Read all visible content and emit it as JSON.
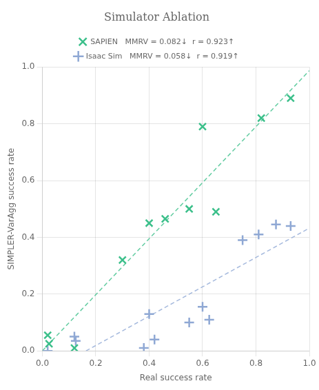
{
  "chart_data": {
    "type": "scatter",
    "title": "Simulator Ablation",
    "xlabel": "Real success rate",
    "ylabel": "SIMPLER-VarAgg success rate",
    "xlim": [
      0.0,
      1.0
    ],
    "ylim": [
      0.0,
      1.0
    ],
    "xticks": [
      {
        "value": 0.0,
        "label": "0.0"
      },
      0.2,
      0.4,
      0.6,
      0.8,
      {
        "value": 1.0,
        "label": "1.0"
      }
    ],
    "yticks": [
      {
        "value": 0.0,
        "label": "0.0"
      },
      0.2,
      0.4,
      0.6,
      0.8,
      {
        "value": 1.0,
        "label": "1.0"
      }
    ],
    "grid": true,
    "legend": "top",
    "series": [
      {
        "name": "SAPIEN",
        "annotation": "MMRV = 0.082↓  r = 0.923↑",
        "color": "#3bbf8a",
        "marker": "x",
        "x": [
          0.02,
          0.025,
          0.12,
          0.3,
          0.4,
          0.46,
          0.55,
          0.6,
          0.65,
          0.82,
          0.93
        ],
        "values": [
          0.055,
          0.025,
          0.01,
          0.32,
          0.45,
          0.465,
          0.5,
          0.79,
          0.49,
          0.82,
          0.89
        ],
        "fit": {
          "type": "line",
          "line_style": "dashed",
          "x": [
            0.0,
            1.0
          ],
          "values": [
            0.0004,
            0.9872
          ]
        }
      },
      {
        "name": "Isaac Sim",
        "annotation": "MMRV = 0.058↓  r = 0.919↑",
        "color": "#8fa8d4",
        "marker": "plus",
        "x": [
          0.02,
          0.12,
          0.125,
          0.38,
          0.4,
          0.42,
          0.55,
          0.6,
          0.625,
          0.75,
          0.81,
          0.875,
          0.93
        ],
        "values": [
          0.0,
          0.05,
          0.035,
          0.01,
          0.13,
          0.04,
          0.1,
          0.155,
          0.11,
          0.39,
          0.41,
          0.445,
          0.44
        ],
        "fit": {
          "type": "line",
          "line_style": "dashed",
          "x": [
            0.1636,
            1.0
          ],
          "values": [
            0.0,
            0.4324
          ]
        }
      }
    ]
  }
}
